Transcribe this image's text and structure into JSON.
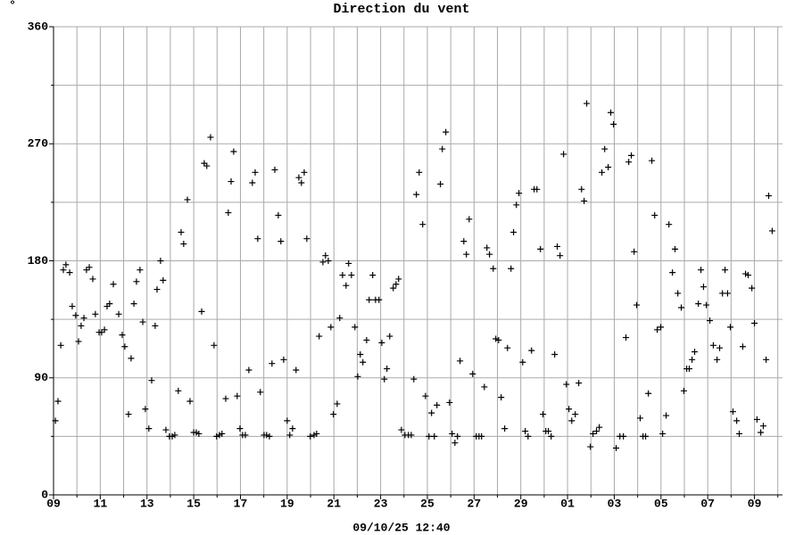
{
  "chart_data": {
    "type": "scatter",
    "title": "Direction du vent",
    "unit_label": "°",
    "x_label": "09/10/25 12:40",
    "color": "#000000",
    "grid": true,
    "xlim": [
      0,
      31.2
    ],
    "ylim": [
      0,
      360
    ],
    "xticks": [
      {
        "value": 0,
        "label": "09"
      },
      {
        "value": 2,
        "label": "11"
      },
      {
        "value": 4,
        "label": "13"
      },
      {
        "value": 6,
        "label": "15"
      },
      {
        "value": 8,
        "label": "17"
      },
      {
        "value": 10,
        "label": "19"
      },
      {
        "value": 12,
        "label": "21"
      },
      {
        "value": 14,
        "label": "23"
      },
      {
        "value": 16,
        "label": "25"
      },
      {
        "value": 18,
        "label": "27"
      },
      {
        "value": 20,
        "label": "29"
      },
      {
        "value": 22,
        "label": "01"
      },
      {
        "value": 24,
        "label": "03"
      },
      {
        "value": 26,
        "label": "05"
      },
      {
        "value": 28,
        "label": "07"
      },
      {
        "value": 30,
        "label": "09"
      }
    ],
    "xminorticks": [
      1,
      3,
      5,
      7,
      9,
      11,
      13,
      15,
      17,
      19,
      21,
      23,
      25,
      27,
      29,
      31
    ],
    "yticks": [
      0,
      90,
      180,
      270,
      360
    ],
    "yminorticks": [
      45,
      135,
      225,
      315
    ],
    "x": [
      0.08,
      0.19,
      0.31,
      0.42,
      0.53,
      0.69,
      0.8,
      0.95,
      1.07,
      1.18,
      1.3,
      1.41,
      1.53,
      1.68,
      1.79,
      1.95,
      2.06,
      2.18,
      2.29,
      2.4,
      2.56,
      2.79,
      2.94,
      3.05,
      3.21,
      3.32,
      3.44,
      3.55,
      3.7,
      3.82,
      3.93,
      4.08,
      4.2,
      4.35,
      4.43,
      4.58,
      4.69,
      4.81,
      4.96,
      5.08,
      5.19,
      5.34,
      5.46,
      5.57,
      5.73,
      5.84,
      6.0,
      6.11,
      6.22,
      6.34,
      6.45,
      6.56,
      6.72,
      6.87,
      6.98,
      7.1,
      7.21,
      7.37,
      7.48,
      7.6,
      7.71,
      7.86,
      7.98,
      8.09,
      8.21,
      8.36,
      8.51,
      8.63,
      8.74,
      8.85,
      9.01,
      9.12,
      9.24,
      9.35,
      9.47,
      9.62,
      9.73,
      9.85,
      10.0,
      10.11,
      10.23,
      10.38,
      10.5,
      10.61,
      10.73,
      10.84,
      10.99,
      11.15,
      11.26,
      11.37,
      11.53,
      11.64,
      11.76,
      11.87,
      11.98,
      12.14,
      12.25,
      12.37,
      12.52,
      12.63,
      12.75,
      12.9,
      13.02,
      13.13,
      13.24,
      13.4,
      13.51,
      13.66,
      13.78,
      13.93,
      14.05,
      14.16,
      14.27,
      14.39,
      14.54,
      14.66,
      14.77,
      14.89,
      15.04,
      15.19,
      15.31,
      15.42,
      15.53,
      15.65,
      15.8,
      15.92,
      16.07,
      16.18,
      16.3,
      16.41,
      16.56,
      16.64,
      16.79,
      16.95,
      17.06,
      17.18,
      17.29,
      17.4,
      17.56,
      17.67,
      17.79,
      17.94,
      18.09,
      18.21,
      18.32,
      18.44,
      18.55,
      18.66,
      18.82,
      18.93,
      19.05,
      19.16,
      19.31,
      19.43,
      19.58,
      19.69,
      19.81,
      19.92,
      20.08,
      20.19,
      20.31,
      20.46,
      20.57,
      20.69,
      20.84,
      20.95,
      21.07,
      21.18,
      21.3,
      21.45,
      21.56,
      21.68,
      21.83,
      21.95,
      22.06,
      22.18,
      22.33,
      22.48,
      22.6,
      22.71,
      22.82,
      22.98,
      23.09,
      23.24,
      23.36,
      23.47,
      23.59,
      23.74,
      23.85,
      23.97,
      24.08,
      24.24,
      24.39,
      24.5,
      24.62,
      24.73,
      24.85,
      24.96,
      25.11,
      25.23,
      25.34,
      25.46,
      25.61,
      25.73,
      25.84,
      25.99,
      26.07,
      26.22,
      26.34,
      26.49,
      26.6,
      26.72,
      26.87,
      26.98,
      27.1,
      27.21,
      27.33,
      27.44,
      27.6,
      27.71,
      27.82,
      27.94,
      28.09,
      28.24,
      28.4,
      28.51,
      28.63,
      28.74,
      28.85,
      28.97,
      29.08,
      29.24,
      29.35,
      29.5,
      29.62,
      29.73,
      29.89,
      30.0,
      30.11,
      30.27,
      30.38,
      30.5,
      30.61,
      30.76
    ],
    "values": [
      57,
      72,
      115,
      173,
      177,
      171,
      145,
      138,
      118,
      130,
      136,
      173,
      175,
      166,
      139,
      125,
      125,
      127,
      145,
      147,
      162,
      139,
      123,
      114,
      62,
      105,
      147,
      164,
      173,
      133,
      66,
      51,
      88,
      130,
      158,
      180,
      165,
      50,
      45,
      45,
      46,
      80,
      202,
      193,
      227,
      72,
      48,
      48,
      47,
      141,
      255,
      253,
      275,
      115,
      45,
      46,
      47,
      74,
      217,
      241,
      264,
      76,
      51,
      46,
      46,
      96,
      240,
      248,
      197,
      79,
      46,
      46,
      45,
      101,
      250,
      215,
      195,
      104,
      57,
      46,
      51,
      96,
      244,
      240,
      248,
      197,
      45,
      46,
      47,
      122,
      179,
      184,
      180,
      129,
      62,
      70,
      136,
      169,
      161,
      178,
      169,
      129,
      91,
      108,
      102,
      119,
      150,
      169,
      150,
      150,
      117,
      89,
      97,
      122,
      159,
      162,
      166,
      50,
      46,
      46,
      46,
      89,
      231,
      248,
      208,
      76,
      45,
      63,
      45,
      69,
      239,
      266,
      279,
      71,
      47,
      40,
      45,
      103,
      195,
      185,
      212,
      93,
      45,
      45,
      45,
      83,
      190,
      185,
      174,
      120,
      119,
      75,
      51,
      113,
      174,
      202,
      223,
      232,
      102,
      49,
      45,
      111,
      235,
      235,
      189,
      62,
      49,
      49,
      45,
      108,
      191,
      184,
      262,
      85,
      66,
      57,
      62,
      86,
      235,
      226,
      301,
      37,
      47,
      49,
      52,
      248,
      266,
      252,
      294,
      285,
      36,
      45,
      45,
      121,
      256,
      261,
      187,
      146,
      59,
      45,
      45,
      78,
      257,
      215,
      127,
      129,
      47,
      61,
      208,
      171,
      189,
      155,
      144,
      80,
      97,
      97,
      104,
      110,
      147,
      173,
      160,
      146,
      134,
      115,
      104,
      113,
      155,
      173,
      155,
      129,
      64,
      57,
      47,
      114,
      170,
      169,
      159,
      132,
      58,
      48,
      53,
      104,
      230,
      203
    ]
  }
}
